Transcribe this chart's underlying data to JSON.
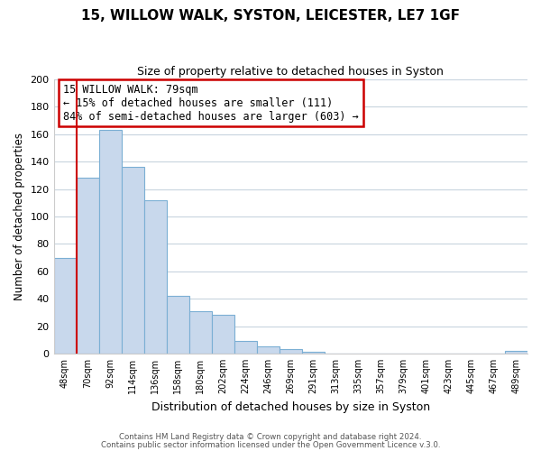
{
  "title1": "15, WILLOW WALK, SYSTON, LEICESTER, LE7 1GF",
  "title2": "Size of property relative to detached houses in Syston",
  "xlabel": "Distribution of detached houses by size in Syston",
  "ylabel": "Number of detached properties",
  "bar_labels": [
    "48sqm",
    "70sqm",
    "92sqm",
    "114sqm",
    "136sqm",
    "158sqm",
    "180sqm",
    "202sqm",
    "224sqm",
    "246sqm",
    "269sqm",
    "291sqm",
    "313sqm",
    "335sqm",
    "357sqm",
    "379sqm",
    "401sqm",
    "423sqm",
    "445sqm",
    "467sqm",
    "489sqm"
  ],
  "bar_values": [
    70,
    128,
    163,
    136,
    112,
    42,
    31,
    28,
    9,
    5,
    3,
    1,
    0,
    0,
    0,
    0,
    0,
    0,
    0,
    0,
    2
  ],
  "bar_color": "#c8d8ec",
  "bar_edge_color": "#7bafd4",
  "ylim": [
    0,
    200
  ],
  "yticks": [
    0,
    20,
    40,
    60,
    80,
    100,
    120,
    140,
    160,
    180,
    200
  ],
  "property_line_color": "#cc0000",
  "annotation_title": "15 WILLOW WALK: 79sqm",
  "annotation_line1": "← 15% of detached houses are smaller (111)",
  "annotation_line2": "84% of semi-detached houses are larger (603) →",
  "annotation_box_color": "#ffffff",
  "annotation_box_edge": "#cc0000",
  "footer1": "Contains HM Land Registry data © Crown copyright and database right 2024.",
  "footer2": "Contains public sector information licensed under the Open Government Licence v.3.0.",
  "background_color": "#ffffff",
  "grid_color": "#c8d4de"
}
